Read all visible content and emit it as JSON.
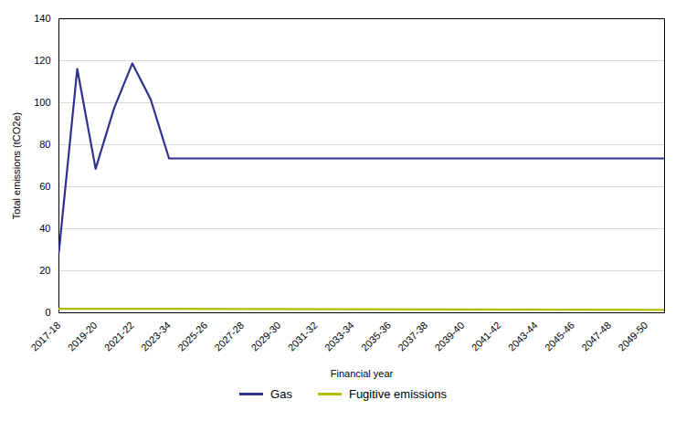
{
  "chart_data": {
    "type": "line",
    "xlabel": "Financial year",
    "ylabel": "Total emissions (tCO2e)",
    "series": [
      {
        "name": "Gas",
        "color": "#2e3192",
        "x": [
          2017,
          2018,
          2019,
          2020,
          2021,
          2022,
          2023,
          2050
        ],
        "values": [
          29.0,
          116.1,
          68.52,
          97.25,
          118.72,
          101.63,
          73.48,
          73.48
        ]
      },
      {
        "name": "Fugitive emissions",
        "color": "#b5bd00",
        "x": [
          2017,
          2023,
          2050
        ],
        "values": [
          1.86,
          1.86,
          1.34
        ]
      }
    ],
    "xlim": [
      2017,
      2050
    ],
    "xticks": [
      {
        "value": 2017,
        "label": "2017-18"
      },
      {
        "value": 2019,
        "label": "2019-20"
      },
      {
        "value": 2021,
        "label": "2021-22"
      },
      {
        "value": 2023,
        "label": "2023-34"
      },
      {
        "value": 2025,
        "label": "2025-26"
      },
      {
        "value": 2027,
        "label": "2027-28"
      },
      {
        "value": 2029,
        "label": "2029-30"
      },
      {
        "value": 2031,
        "label": "2031-32"
      },
      {
        "value": 2033,
        "label": "2033-34"
      },
      {
        "value": 2035,
        "label": "2035-36"
      },
      {
        "value": 2037,
        "label": "2037-38"
      },
      {
        "value": 2039,
        "label": "2039-40"
      },
      {
        "value": 2041,
        "label": "2041-42"
      },
      {
        "value": 2043,
        "label": "2043-44"
      },
      {
        "value": 2045,
        "label": "2045-46"
      },
      {
        "value": 2047,
        "label": "2047-48"
      },
      {
        "value": 2049,
        "label": "2049-50"
      }
    ],
    "ylim": [
      0,
      140
    ],
    "yticks": [
      0,
      20,
      40,
      60,
      80,
      100,
      120,
      140
    ],
    "grid": "y",
    "legend": "bottom"
  }
}
